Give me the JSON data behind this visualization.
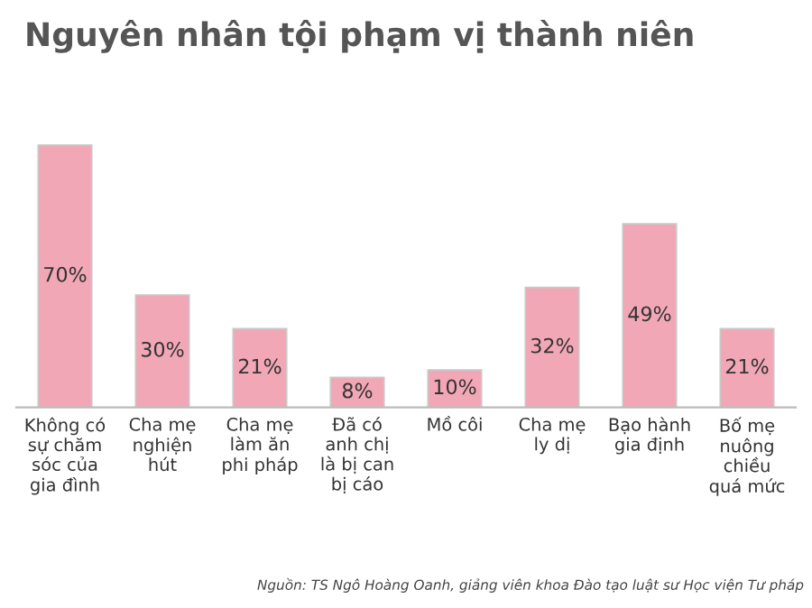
{
  "chart_data": {
    "type": "bar",
    "title": "Nguyên nhân tội phạm vị thành niên",
    "categories": [
      "Không có\nsự chăm\nsóc của\ngia đình",
      "Cha mẹ\nnghiện\nhút",
      "Cha mẹ\nlàm ăn\nphi pháp",
      "Đã có\nanh chị\nlà bị can\nbị cáo",
      "Mồ côi",
      "Cha mẹ\nly dị",
      "Bạo hành\ngia định",
      "Bố mẹ\nnuông\nchiều\nquá mức"
    ],
    "values": [
      70,
      30,
      21,
      8,
      10,
      32,
      49,
      21
    ],
    "value_labels": [
      "70%",
      "30%",
      "21%",
      "8%",
      "10%",
      "32%",
      "49%",
      "21%"
    ],
    "color": "#f2a7b6",
    "annotations": [
      "Nguồn: TS Ngô Hoàng Oanh, giảng viên khoa Đào tạo luật sư Học viện Tư pháp"
    ]
  }
}
